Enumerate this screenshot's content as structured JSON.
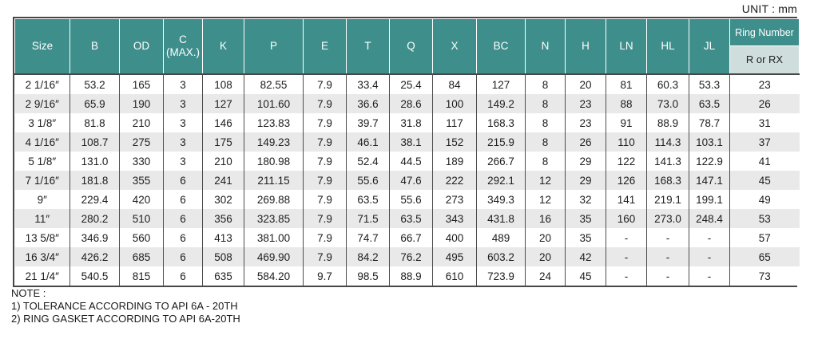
{
  "unit_label": "UNIT : mm",
  "table": {
    "columns": [
      "Size",
      "B",
      "OD",
      "C\n(MAX.)",
      "K",
      "P",
      "E",
      "T",
      "Q",
      "X",
      "BC",
      "N",
      "H",
      "LN",
      "HL",
      "JL"
    ],
    "ring_header": {
      "top": "Ring Number",
      "sub": "R or RX"
    },
    "rows": [
      [
        "2 1/16″",
        "53.2",
        "165",
        "3",
        "108",
        "82.55",
        "7.9",
        "33.4",
        "25.4",
        "84",
        "127",
        "8",
        "20",
        "81",
        "60.3",
        "53.3",
        "23"
      ],
      [
        "2 9/16″",
        "65.9",
        "190",
        "3",
        "127",
        "101.60",
        "7.9",
        "36.6",
        "28.6",
        "100",
        "149.2",
        "8",
        "23",
        "88",
        "73.0",
        "63.5",
        "26"
      ],
      [
        "3 1/8″",
        "81.8",
        "210",
        "3",
        "146",
        "123.83",
        "7.9",
        "39.7",
        "31.8",
        "117",
        "168.3",
        "8",
        "23",
        "91",
        "88.9",
        "78.7",
        "31"
      ],
      [
        "4 1/16″",
        "108.7",
        "275",
        "3",
        "175",
        "149.23",
        "7.9",
        "46.1",
        "38.1",
        "152",
        "215.9",
        "8",
        "26",
        "110",
        "114.3",
        "103.1",
        "37"
      ],
      [
        "5 1/8″",
        "131.0",
        "330",
        "3",
        "210",
        "180.98",
        "7.9",
        "52.4",
        "44.5",
        "189",
        "266.7",
        "8",
        "29",
        "122",
        "141.3",
        "122.9",
        "41"
      ],
      [
        "7 1/16″",
        "181.8",
        "355",
        "6",
        "241",
        "211.15",
        "7.9",
        "55.6",
        "47.6",
        "222",
        "292.1",
        "12",
        "29",
        "126",
        "168.3",
        "147.1",
        "45"
      ],
      [
        "9″",
        "229.4",
        "420",
        "6",
        "302",
        "269.88",
        "7.9",
        "63.5",
        "55.6",
        "273",
        "349.3",
        "12",
        "32",
        "141",
        "219.1",
        "199.1",
        "49"
      ],
      [
        "11″",
        "280.2",
        "510",
        "6",
        "356",
        "323.85",
        "7.9",
        "71.5",
        "63.5",
        "343",
        "431.8",
        "16",
        "35",
        "160",
        "273.0",
        "248.4",
        "53"
      ],
      [
        "13 5/8″",
        "346.9",
        "560",
        "6",
        "413",
        "381.00",
        "7.9",
        "74.7",
        "66.7",
        "400",
        "489",
        "20",
        "35",
        "-",
        "-",
        "-",
        "57"
      ],
      [
        "16 3/4″",
        "426.2",
        "685",
        "6",
        "508",
        "469.90",
        "7.9",
        "84.2",
        "76.2",
        "495",
        "603.2",
        "20",
        "42",
        "-",
        "-",
        "-",
        "65"
      ],
      [
        "21 1/4″",
        "540.5",
        "815",
        "6",
        "635",
        "584.20",
        "9.7",
        "98.5",
        "88.9",
        "610",
        "723.9",
        "24",
        "45",
        "-",
        "-",
        "-",
        "73"
      ]
    ]
  },
  "notes": {
    "title": "NOTE :",
    "lines": [
      "1) TOLERANCE ACCORDING TO API 6A - 20TH",
      "2) RING GASKET ACCORDING TO API 6A-20TH"
    ]
  },
  "colors": {
    "header_teal": "#3e8f8c",
    "ring_sub_bg": "#cfdedd",
    "row_stripe": "#e9e9e9",
    "border_dark": "#474747"
  }
}
